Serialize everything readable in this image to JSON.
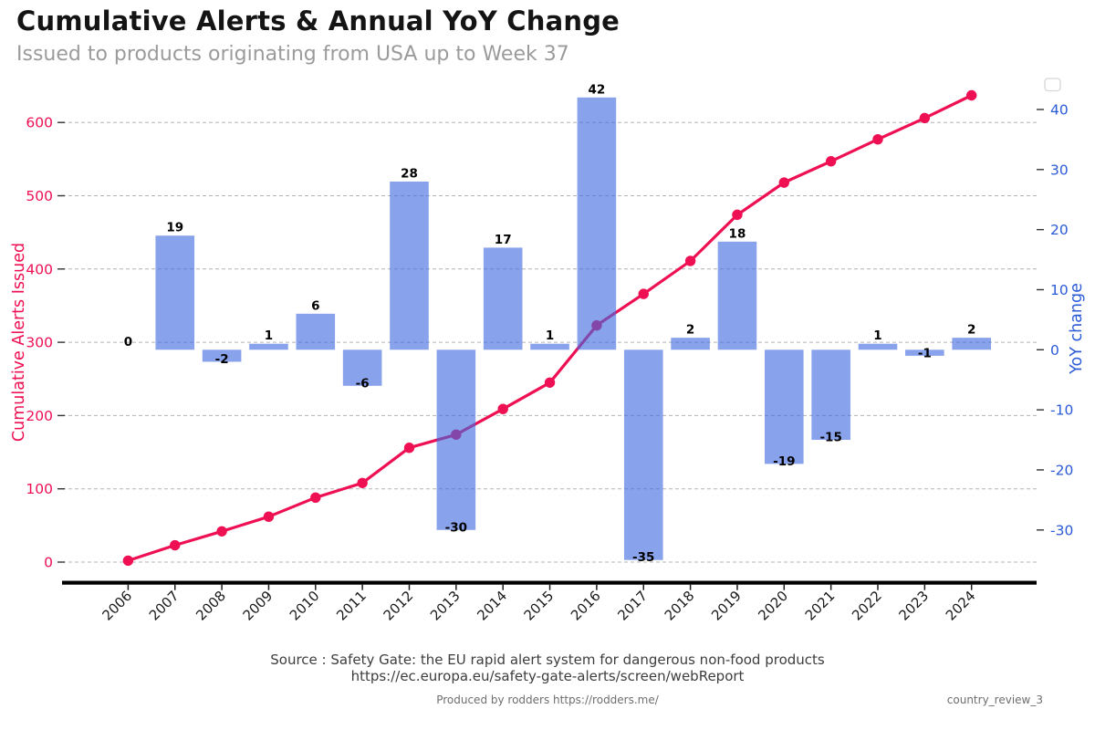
{
  "header": {
    "title": "Cumulative Alerts & Annual YoY Change",
    "subtitle": "Issued to products originating from USA up to Week 37"
  },
  "chart_data": {
    "type": "combo-bar-line",
    "categories": [
      "2006",
      "2007",
      "2008",
      "2009",
      "2010",
      "2011",
      "2012",
      "2013",
      "2014",
      "2015",
      "2016",
      "2017",
      "2018",
      "2019",
      "2020",
      "2021",
      "2022",
      "2023",
      "2024"
    ],
    "series": [
      {
        "name": "Cumulative Alerts Issued",
        "type": "line",
        "axis": "left",
        "color": "#ee1053",
        "marker": "circle",
        "values": [
          2,
          23,
          42,
          62,
          88,
          108,
          156,
          174,
          209,
          245,
          323,
          366,
          411,
          474,
          518,
          547,
          577,
          606,
          637
        ]
      },
      {
        "name": "YoY change",
        "type": "bar",
        "axis": "right",
        "color": "#4169e1",
        "alpha": 0.62,
        "values": [
          0,
          19,
          -2,
          1,
          6,
          -6,
          28,
          -30,
          17,
          1,
          42,
          -35,
          2,
          18,
          -19,
          -15,
          1,
          -1,
          2
        ]
      }
    ],
    "bar_labels": [
      "0",
      "19",
      "-2",
      "1",
      "6",
      "-6",
      "28",
      "-30",
      "17",
      "1",
      "42",
      "-35",
      "2",
      "18",
      "-19",
      "-15",
      "1",
      "-1",
      "2"
    ],
    "left_axis": {
      "label": "Cumulative Alerts Issued",
      "color": "#ee1053",
      "ticks": [
        0,
        100,
        200,
        300,
        400,
        500,
        600
      ],
      "range": [
        0,
        600
      ]
    },
    "right_axis": {
      "label": "YoY change",
      "color": "#2b5bd7",
      "ticks": [
        40,
        30,
        20,
        10,
        0,
        -10,
        -20,
        -30
      ],
      "range": [
        -36,
        44
      ]
    },
    "grid": "horizontal-dashed",
    "legend": "empty-box-top-right",
    "bar_label_color": "#000000",
    "year_label_rotation": -45
  },
  "footer": {
    "source_line1": "Source : Safety Gate: the EU rapid alert system for dangerous non-food products",
    "source_line2": "https://ec.europa.eu/safety-gate-alerts/screen/webReport",
    "produced_by": "Produced by rodders https://rodders.me/",
    "file_ref": "country_review_3"
  }
}
